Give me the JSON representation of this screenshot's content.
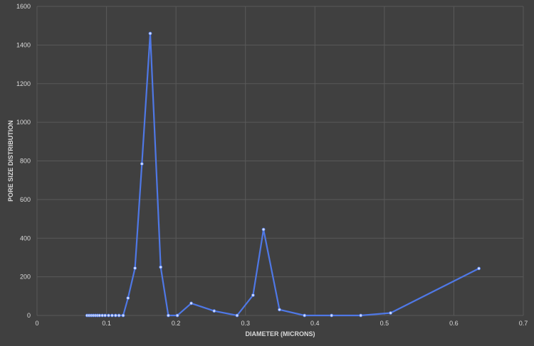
{
  "colors": {
    "background": "#404040",
    "gridline": "#595959",
    "series_line": "#4f78e6",
    "series_marker": "#cfdcff",
    "text": "#d9d9d9"
  },
  "chart_data": {
    "type": "scatter",
    "style": "lines-and-markers",
    "title": "",
    "xlabel": "DIAMETER (MICRONS)",
    "ylabel": "PORE SIZE DISTRIBUTION",
    "xlim": [
      0,
      0.7
    ],
    "ylim": [
      0,
      1600
    ],
    "xticks": [
      0,
      0.1,
      0.2,
      0.3,
      0.4,
      0.5,
      0.6,
      0.7
    ],
    "xtick_labels": [
      "0",
      "0.1",
      "0.2",
      "0.3",
      "0.4",
      "0.5",
      "0.6",
      "0.7"
    ],
    "yticks": [
      0,
      200,
      400,
      600,
      800,
      1000,
      1200,
      1400,
      1600
    ],
    "ytick_labels": [
      "0",
      "200",
      "400",
      "600",
      "800",
      "1000",
      "1200",
      "1400",
      "1600"
    ],
    "grid": true,
    "legend": false,
    "series": [
      {
        "x": [
          0.072,
          0.075,
          0.078,
          0.081,
          0.084,
          0.087,
          0.09,
          0.094,
          0.098,
          0.103,
          0.108,
          0.113,
          0.118,
          0.124,
          0.131,
          0.141,
          0.151,
          0.163,
          0.178,
          0.189,
          0.202,
          0.222,
          0.255,
          0.288,
          0.311,
          0.326,
          0.349,
          0.385,
          0.424,
          0.466,
          0.509,
          0.636
        ],
        "y": [
          0,
          0,
          0,
          0,
          0,
          0,
          0,
          0,
          0,
          0,
          0,
          0,
          0,
          0,
          90,
          245,
          785,
          1460,
          250,
          0,
          0,
          63,
          23,
          0,
          105,
          445,
          30,
          0,
          0,
          0,
          13,
          243
        ]
      }
    ]
  }
}
